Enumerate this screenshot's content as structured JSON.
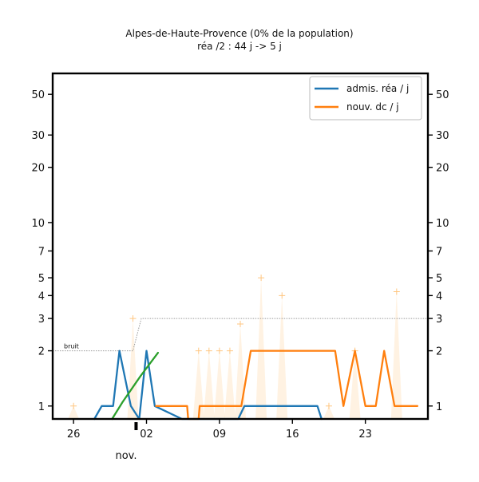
{
  "chart_data": {
    "type": "line",
    "title": "Alpes-de-Haute-Provence (0% de la population)",
    "subtitle": "réa /2 : 44 j -> 5 j",
    "x_axis": {
      "tick_labels": [
        "26",
        "02",
        "09",
        "16",
        "23"
      ],
      "tick_days": [
        -6,
        1,
        8,
        15,
        22
      ],
      "month_label": "nov.",
      "range_days": [
        -8,
        28
      ]
    },
    "y_axis": {
      "scale": "log",
      "ticks": [
        1,
        2,
        3,
        4,
        5,
        7,
        10,
        20,
        30,
        50
      ],
      "tick_labels": [
        "1",
        "2",
        "3",
        "4",
        "5",
        "7",
        "10",
        "20",
        "30",
        "50"
      ],
      "range": [
        0.85,
        65
      ],
      "mirror_right": true
    },
    "noise_label": "bruit",
    "legend": {
      "position": "top-right",
      "entries": [
        {
          "label": "admis. réa / j",
          "color": "#1f77b4"
        },
        {
          "label": "nouv. dc / j",
          "color": "#ff7f0e"
        }
      ]
    },
    "series": [
      {
        "name": "admis. réa / j",
        "color": "#1f77b4",
        "x": [
          -4,
          -3.3,
          -2.2,
          -1.6,
          -0.5,
          0.3,
          1,
          1.8,
          4.4,
          9.8,
          10.4,
          17.4,
          17.8
        ],
        "y": [
          0.85,
          1,
          1,
          2,
          1,
          0.85,
          2,
          1,
          0.85,
          0.85,
          1,
          1,
          0.85
        ]
      },
      {
        "name": "nouv. dc / j",
        "color": "#ff7f0e",
        "x": [
          1.9,
          4.9,
          5.0,
          6.0,
          6.1,
          7.7,
          10.1,
          11.0,
          15.0,
          19.1,
          19.9,
          21.0,
          22.0,
          23.0,
          23.8,
          24.8,
          27.0
        ],
        "y": [
          1,
          1,
          0.85,
          0.85,
          1,
          1,
          1,
          2,
          2,
          2,
          1,
          2,
          1,
          1,
          2,
          1,
          1
        ]
      },
      {
        "role": "trend",
        "color": "#2ca02c",
        "x": [
          -2.3,
          -1.3,
          0.4,
          2.1
        ],
        "y": [
          0.85,
          1.05,
          1.45,
          1.95
        ]
      },
      {
        "role": "noise-threshold",
        "color": "#999999",
        "x": [
          -8,
          -0.3,
          0.5,
          28
        ],
        "y": [
          2,
          2,
          3,
          3
        ]
      },
      {
        "role": "raw-daily-deaths",
        "color": "#ffe3bf",
        "x": [
          -6,
          -0.3,
          6.0,
          7.0,
          8.0,
          9.0,
          10.0,
          12.0,
          14.0,
          18.5,
          21.0,
          25.0
        ],
        "y": [
          1,
          3,
          2,
          2,
          2,
          2,
          2.8,
          5,
          4,
          1,
          2,
          4.2
        ]
      }
    ]
  }
}
